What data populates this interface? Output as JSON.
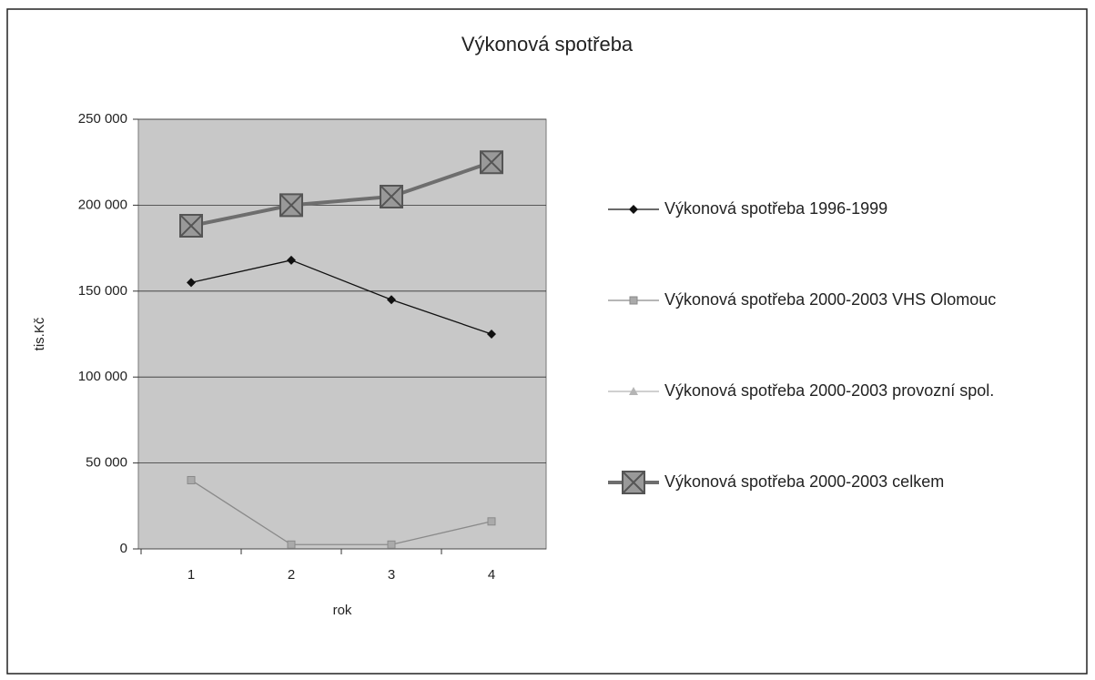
{
  "chart_data": {
    "type": "line",
    "title": "Výkonová spotřeba",
    "x_label": "rok",
    "y_label": "tis.Kč",
    "categories": [
      "1",
      "2",
      "3",
      "4"
    ],
    "series": [
      {
        "name": "Výkonová spotřeba 1996-1999",
        "color": "#111111",
        "marker": "diamond",
        "values": [
          155000,
          168000,
          145000,
          125000
        ]
      },
      {
        "name": "Výkonová spotřeba 2000-2003 VHS Olomouc",
        "color": "#8a8a8a",
        "marker": "square",
        "values": [
          40000,
          2500,
          2500,
          16000
        ]
      },
      {
        "name": "Výkonová spotřeba 2000-2003 provozní spol.",
        "color": "#b5b5b5",
        "marker": "triangle",
        "values": [
          null,
          null,
          null,
          null
        ]
      },
      {
        "name": "Výkonová spotřeba 2000-2003 celkem",
        "color": "#6e6e6e",
        "marker": "crossed-square",
        "values": [
          188000,
          200000,
          205000,
          225000
        ]
      }
    ],
    "ylim": [
      0,
      250000
    ],
    "yticks": [
      {
        "value": 0,
        "label": "0"
      },
      {
        "value": 50000,
        "label": "50 000"
      },
      {
        "value": 100000,
        "label": "100 000"
      },
      {
        "value": 150000,
        "label": "150 000"
      },
      {
        "value": 200000,
        "label": "200 000"
      },
      {
        "value": 250000,
        "label": "250 000"
      }
    ],
    "grid": true,
    "legend": "right"
  }
}
